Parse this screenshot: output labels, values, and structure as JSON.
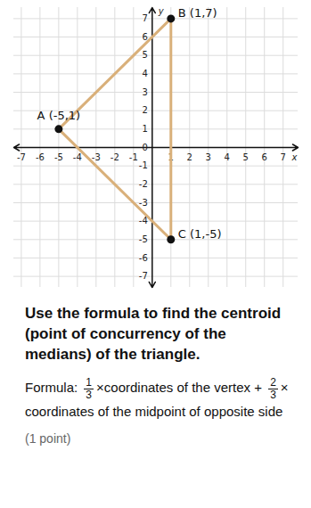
{
  "chart_data": {
    "type": "line",
    "x": [
      -5,
      1,
      1
    ],
    "y": [
      1,
      7,
      -5
    ],
    "point_labels": [
      "A (-5,1)",
      "B (1,7)",
      "C (1,-5)"
    ],
    "color": "#d9b07a",
    "marker": "circle",
    "xlabel": "x",
    "ylabel": "y",
    "xlim": [
      -7.4,
      7.8
    ],
    "ylim": [
      -7.6,
      7.6
    ],
    "xticks": [
      -7,
      -6,
      -5,
      -4,
      -3,
      -2,
      -1,
      1,
      2,
      3,
      4,
      5,
      6,
      7
    ],
    "yticks": [
      -7,
      -6,
      -5,
      -4,
      -3,
      -2,
      -1,
      0,
      1,
      2,
      3,
      4,
      5,
      6,
      7
    ],
    "grid": true
  },
  "question": "Use the formula to find the centroid (point of concurrency of the medians) of the triangle.",
  "formula": {
    "prefix": "Formula:",
    "coef1": {
      "num": 1,
      "den": 3
    },
    "text1": "×coordinates of the vertex +",
    "coef2": {
      "num": 2,
      "den": 3
    },
    "text2": "× coordinates of the midpoint of opposite side"
  },
  "points_note": "(1 point)"
}
